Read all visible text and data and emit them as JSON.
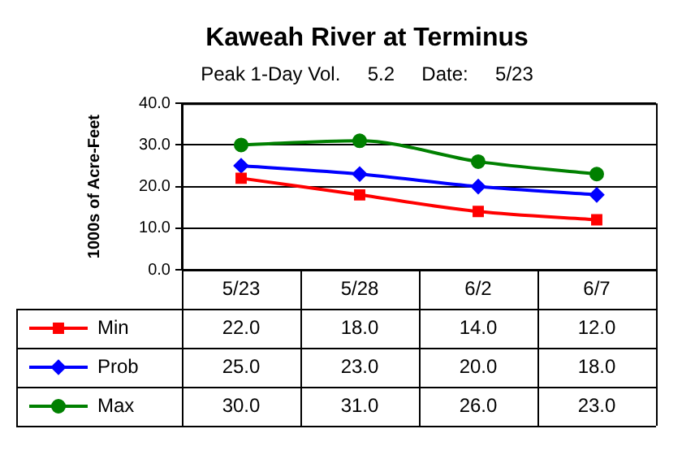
{
  "chart_data": {
    "type": "line",
    "title": "Kaweah River at Terminus",
    "subtitle": "Peak 1-Day Vol.     5.2     Date:     5/23",
    "ylabel": "1000s of Acre-Feet",
    "categories": [
      "5/23",
      "5/28",
      "6/2",
      "6/7"
    ],
    "series": [
      {
        "name": "Min",
        "color": "#ff0000",
        "marker": "square",
        "values": [
          22.0,
          18.0,
          14.0,
          12.0
        ],
        "value_labels": [
          "22.0",
          "18.0",
          "14.0",
          "12.0"
        ]
      },
      {
        "name": "Prob",
        "color": "#0000ff",
        "marker": "diamond",
        "values": [
          25.0,
          23.0,
          20.0,
          18.0
        ],
        "value_labels": [
          "25.0",
          "23.0",
          "20.0",
          "18.0"
        ]
      },
      {
        "name": "Max",
        "color": "#008000",
        "marker": "circle",
        "values": [
          30.0,
          31.0,
          26.0,
          23.0
        ],
        "value_labels": [
          "30.0",
          "31.0",
          "26.0",
          "23.0"
        ]
      }
    ],
    "ylim": [
      0,
      40
    ],
    "yticks": [
      {
        "value": 0,
        "label": "0.0"
      },
      {
        "value": 10,
        "label": "10.0"
      },
      {
        "value": 20,
        "label": "20.0"
      },
      {
        "value": 30,
        "label": "30.0"
      },
      {
        "value": 40,
        "label": "40.0"
      }
    ],
    "grid": "y",
    "legend": "bottom",
    "data_labels": true
  }
}
